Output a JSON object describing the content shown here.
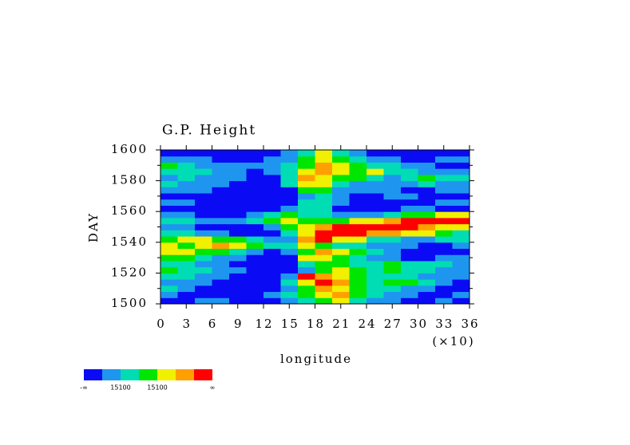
{
  "chart_data": {
    "type": "heatmap",
    "title": "G.P. Height",
    "xlabel": "longitude",
    "ylabel": "DAY",
    "x_scale_label": "(×10)",
    "xlim": [
      0,
      36
    ],
    "xticks": [
      0,
      3,
      6,
      9,
      12,
      15,
      18,
      21,
      24,
      27,
      30,
      33,
      36
    ],
    "ylim": [
      1500,
      1600
    ],
    "yticks": [
      1500,
      1520,
      1540,
      1560,
      1580,
      1600
    ],
    "yminorticks": [
      1510,
      1530,
      1550,
      1570,
      1590
    ],
    "xbins": [
      0,
      2,
      4,
      6,
      8,
      10,
      12,
      14,
      16,
      18,
      20,
      22,
      24,
      26,
      28,
      30,
      32,
      34,
      36
    ],
    "ybins": [
      1500,
      1504,
      1508,
      1512,
      1516,
      1520,
      1524,
      1528,
      1532,
      1536,
      1540,
      1544,
      1548,
      1552,
      1556,
      1560,
      1564,
      1568,
      1572,
      1576,
      1580,
      1584,
      1588,
      1592,
      1596,
      1600
    ],
    "colors": [
      "#0a0af5",
      "#1e96f0",
      "#00dcb4",
      "#00e600",
      "#f0f000",
      "#ffa000",
      "#ff0000"
    ],
    "colorbar_labels": [
      "-∞",
      "15100",
      "15100",
      "∞"
    ],
    "z": [
      [
        0,
        0,
        1,
        1,
        0,
        0,
        0,
        1,
        2,
        3,
        4,
        2,
        1,
        1,
        0,
        0,
        1,
        0
      ],
      [
        1,
        0,
        0,
        0,
        0,
        0,
        1,
        2,
        3,
        4,
        5,
        3,
        2,
        1,
        1,
        0,
        0,
        1
      ],
      [
        2,
        1,
        0,
        0,
        0,
        0,
        0,
        1,
        3,
        5,
        4,
        3,
        2,
        2,
        1,
        1,
        0,
        0
      ],
      [
        1,
        1,
        1,
        0,
        0,
        0,
        0,
        2,
        4,
        6,
        5,
        3,
        2,
        3,
        3,
        2,
        1,
        0
      ],
      [
        2,
        2,
        1,
        1,
        0,
        0,
        0,
        1,
        6,
        5,
        4,
        3,
        2,
        2,
        2,
        1,
        1,
        1
      ],
      [
        3,
        2,
        2,
        1,
        1,
        0,
        0,
        0,
        1,
        3,
        4,
        3,
        2,
        3,
        2,
        2,
        1,
        1
      ],
      [
        2,
        2,
        1,
        1,
        0,
        0,
        0,
        0,
        2,
        3,
        3,
        2,
        2,
        3,
        2,
        2,
        2,
        1
      ],
      [
        3,
        3,
        2,
        1,
        1,
        0,
        0,
        0,
        4,
        4,
        3,
        2,
        1,
        1,
        0,
        0,
        1,
        1
      ],
      [
        4,
        4,
        3,
        3,
        2,
        1,
        0,
        1,
        3,
        5,
        4,
        3,
        2,
        1,
        0,
        0,
        0,
        0
      ],
      [
        4,
        3,
        4,
        5,
        4,
        3,
        2,
        2,
        4,
        3,
        2,
        2,
        1,
        1,
        1,
        0,
        0,
        1
      ],
      [
        3,
        4,
        4,
        3,
        3,
        2,
        1,
        1,
        5,
        6,
        4,
        4,
        2,
        2,
        1,
        1,
        2,
        2
      ],
      [
        2,
        2,
        1,
        1,
        0,
        0,
        0,
        2,
        4,
        6,
        6,
        6,
        5,
        5,
        4,
        4,
        3,
        2
      ],
      [
        1,
        1,
        0,
        0,
        0,
        0,
        1,
        3,
        4,
        5,
        6,
        6,
        6,
        6,
        6,
        5,
        4,
        4
      ],
      [
        2,
        2,
        1,
        1,
        1,
        2,
        3,
        4,
        3,
        3,
        3,
        4,
        4,
        5,
        6,
        6,
        6,
        6
      ],
      [
        1,
        1,
        0,
        0,
        0,
        1,
        2,
        3,
        2,
        2,
        1,
        1,
        1,
        2,
        3,
        3,
        4,
        4
      ],
      [
        0,
        0,
        0,
        0,
        0,
        0,
        0,
        1,
        2,
        2,
        0,
        0,
        0,
        0,
        1,
        1,
        0,
        0
      ],
      [
        1,
        1,
        0,
        0,
        0,
        0,
        0,
        0,
        2,
        2,
        1,
        0,
        0,
        0,
        0,
        0,
        1,
        1
      ],
      [
        0,
        0,
        0,
        0,
        0,
        0,
        0,
        0,
        1,
        2,
        1,
        0,
        0,
        1,
        1,
        0,
        0,
        0
      ],
      [
        1,
        1,
        1,
        0,
        0,
        0,
        0,
        0,
        3,
        3,
        1,
        1,
        1,
        1,
        0,
        0,
        1,
        1
      ],
      [
        2,
        1,
        1,
        1,
        0,
        0,
        0,
        2,
        4,
        4,
        2,
        1,
        1,
        1,
        1,
        2,
        1,
        1
      ],
      [
        1,
        2,
        1,
        1,
        1,
        0,
        0,
        2,
        5,
        4,
        3,
        3,
        2,
        1,
        2,
        3,
        2,
        2
      ],
      [
        2,
        2,
        2,
        1,
        1,
        0,
        1,
        2,
        4,
        5,
        4,
        3,
        4,
        2,
        2,
        1,
        1,
        1
      ],
      [
        3,
        2,
        1,
        1,
        1,
        1,
        1,
        2,
        3,
        5,
        4,
        3,
        2,
        2,
        1,
        1,
        0,
        0
      ],
      [
        1,
        1,
        1,
        0,
        0,
        0,
        1,
        1,
        3,
        4,
        3,
        2,
        1,
        1,
        0,
        0,
        1,
        1
      ],
      [
        0,
        0,
        0,
        0,
        0,
        0,
        0,
        1,
        2,
        4,
        2,
        1,
        0,
        0,
        0,
        0,
        0,
        0
      ]
    ]
  }
}
